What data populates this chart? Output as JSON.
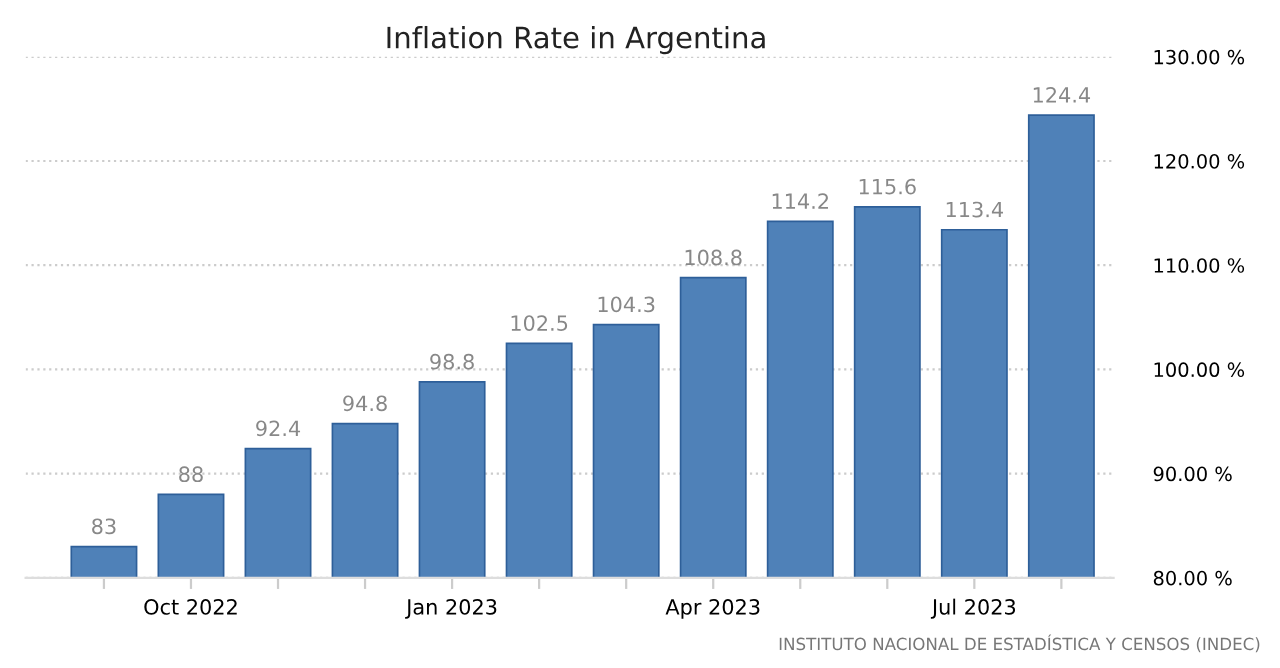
{
  "chart_data": {
    "type": "bar",
    "title": "Inflation Rate in Argentina",
    "categories": [
      null,
      "Oct 2022",
      null,
      null,
      "Jan 2023",
      null,
      null,
      "Apr 2023",
      null,
      null,
      "Jul 2023",
      null
    ],
    "values": [
      83,
      88,
      92.4,
      94.8,
      98.8,
      102.5,
      104.3,
      108.8,
      114.2,
      115.6,
      113.4,
      124.4
    ],
    "color": "#4f81b8",
    "data_labels": true,
    "ylim": [
      80,
      130
    ],
    "yticks": [
      {
        "value": 80,
        "label": "80.00 %"
      },
      {
        "value": 90,
        "label": "90.00 %"
      },
      {
        "value": 100,
        "label": "100.00 %"
      },
      {
        "value": 110,
        "label": "110.00 %"
      },
      {
        "value": 120,
        "label": "120.00 %"
      },
      {
        "value": 130,
        "label": "130.00 %"
      }
    ],
    "grid": "y",
    "annotations": [
      "INSTITUTO NACIONAL DE ESTADÍSTICA Y CENSOS (INDEC)"
    ]
  }
}
